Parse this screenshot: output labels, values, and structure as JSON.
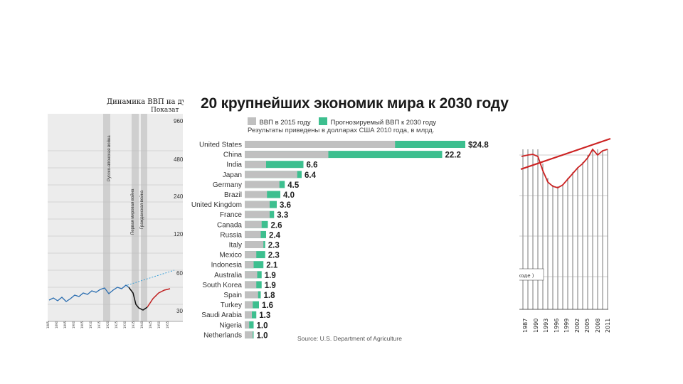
{
  "colors": {
    "bar_2015": "#c0c0c0",
    "bar_2030": "#3dbf8f",
    "left_blue": "#2a6db0",
    "right_red": "#cc2222",
    "grey_band": "#cfcfcf"
  },
  "left_panel": {
    "title": "Динамика ВВП на ду",
    "subtitle": "Показат",
    "right_axis_labels": [
      "960",
      "480",
      "240",
      "120",
      "60",
      "30"
    ],
    "band_labels": [
      "Русско-японская война",
      "Первая мировая война",
      "Гражданская война"
    ]
  },
  "main": {
    "title": "20 крупнейших экономик мира к 2030 году",
    "legend": [
      {
        "label": "ВВП в 2015 году",
        "color": "#c0c0c0"
      },
      {
        "label": "Прогнозируемый ВВП к 2030 году",
        "color": "#3dbf8f"
      }
    ],
    "subtitle": "Результаты приведены в долларах США 2010 года, в млрд.",
    "source": "Source: U.S. Department of Agriculture"
  },
  "chart_data": {
    "type": "bar",
    "orientation": "horizontal",
    "title": "20 крупнейших экономик мира к 2030 году",
    "subtitle": "Результаты приведены в долларах США 2010 года, в млрд.",
    "categories": [
      "United States",
      "China",
      "India",
      "Japan",
      "Germany",
      "Brazil",
      "United Kingdom",
      "France",
      "Canada",
      "Russia",
      "Italy",
      "Mexico",
      "Indonesia",
      "Australia",
      "South Korea",
      "Spain",
      "Turkey",
      "Saudi Arabia",
      "Nigeria",
      "Netherlands"
    ],
    "series": [
      {
        "name": "ВВП в 2015 году",
        "values": [
          16.9,
          9.4,
          2.4,
          5.9,
          3.9,
          2.5,
          2.8,
          2.8,
          1.9,
          1.8,
          2.1,
          1.3,
          1.0,
          1.4,
          1.3,
          1.5,
          0.9,
          0.8,
          0.5,
          0.9
        ]
      },
      {
        "name": "Прогнозируемый ВВП к 2030 году",
        "values": [
          24.8,
          22.2,
          6.6,
          6.4,
          4.5,
          4.0,
          3.6,
          3.3,
          2.6,
          2.4,
          2.3,
          2.3,
          2.1,
          1.9,
          1.9,
          1.8,
          1.6,
          1.3,
          1.0,
          1.0
        ]
      }
    ],
    "value_labels": [
      "$24.8",
      "22.2",
      "6.6",
      "6.4",
      "4.5",
      "4.0",
      "3.6",
      "3.3",
      "2.6",
      "2.4",
      "2.3",
      "2.3",
      "2.1",
      "1.9",
      "1.9",
      "1.8",
      "1.6",
      "1.3",
      "1.0",
      "1.0"
    ],
    "xlim": [
      0,
      26
    ],
    "legend": "top"
  },
  "right_panel": {
    "year_labels": [
      "1987",
      "1990",
      "1993",
      "1996",
      "1999",
      "2002",
      "2005",
      "2008",
      "2011"
    ],
    "box_label": "ходе )"
  }
}
